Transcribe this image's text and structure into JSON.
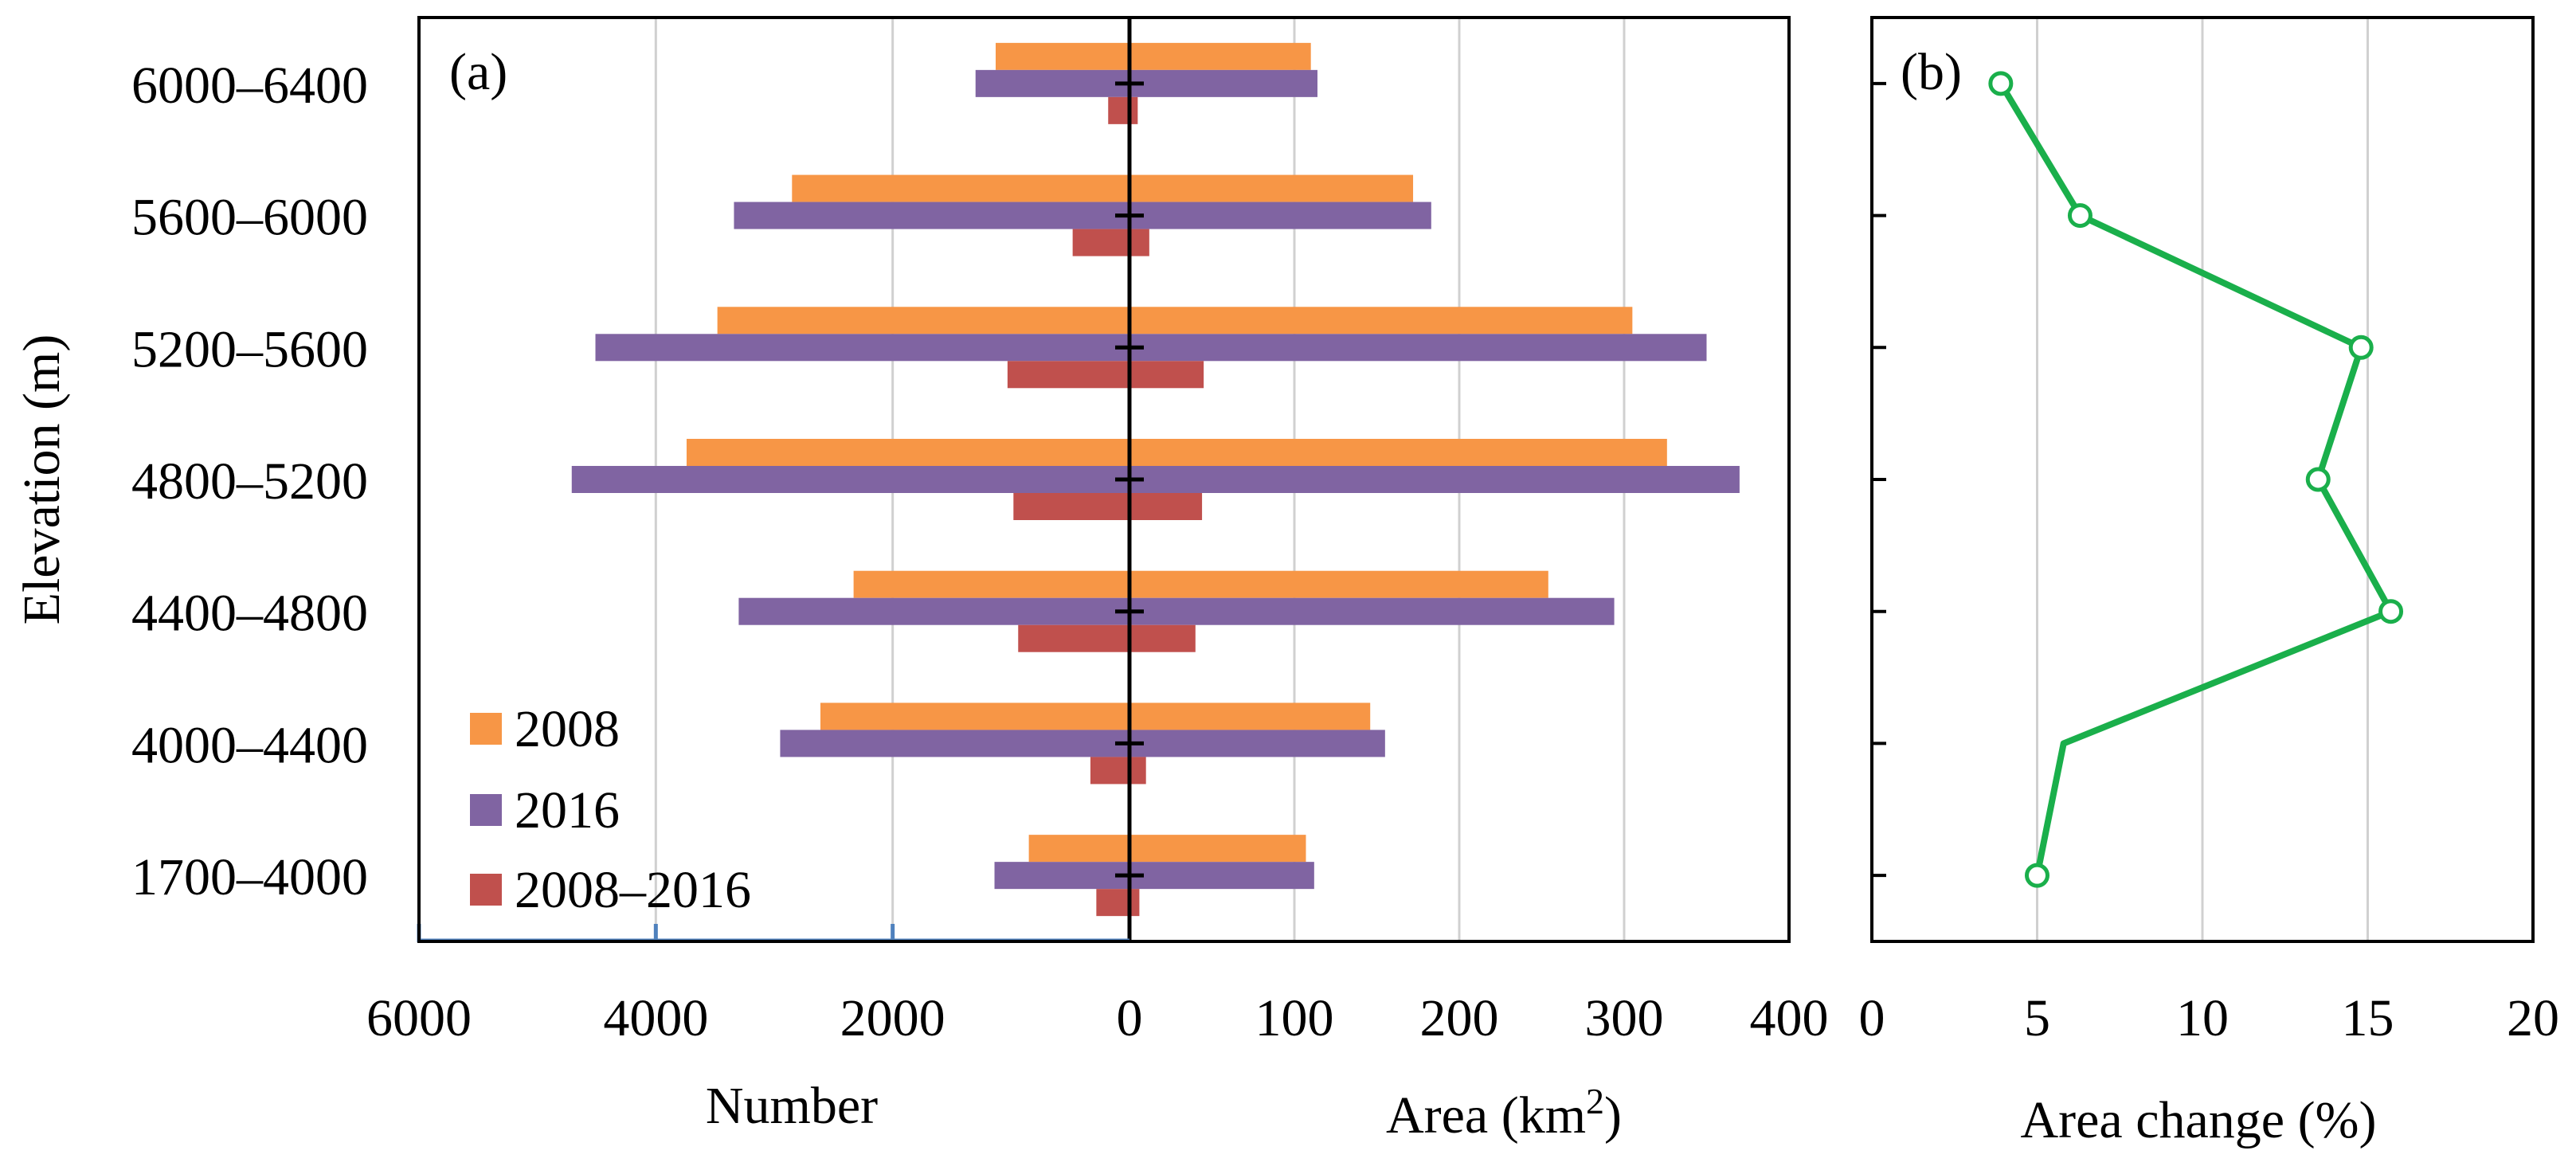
{
  "chart_data": [
    {
      "panel": "(a)",
      "type": "bar",
      "orientation": "horizontal-diverging",
      "ylabel": "Elevation (m)",
      "categories": [
        "6000–6400",
        "5600–6000",
        "5200–5600",
        "4800–5200",
        "4400–4800",
        "4000–4400",
        "1700–4000"
      ],
      "left": {
        "xlabel": "Number",
        "xlim": [
          6000,
          0
        ],
        "ticks": [
          "6000",
          "4000",
          "2000",
          "0"
        ],
        "series": [
          {
            "name": "2008",
            "color": "#F79646",
            "values": [
              1130,
              2850,
              3480,
              3740,
              2330,
              2610,
              850
            ]
          },
          {
            "name": "2016",
            "color": "#8064A2",
            "values": [
              1300,
              3340,
              4510,
              4710,
              3300,
              2950,
              1140
            ]
          },
          {
            "name": "2008–2016",
            "color": "#C0504D",
            "values": [
              180,
              480,
              1030,
              980,
              940,
              330,
              280
            ]
          }
        ]
      },
      "right": {
        "xlabel": "Area (km",
        "xlabel_sup": "2",
        "xlabel_tail": ")",
        "xlim": [
          0,
          400
        ],
        "ticks": [
          "0",
          "100",
          "200",
          "300",
          "400"
        ],
        "series": [
          {
            "name": "2008",
            "color": "#F79646",
            "values": [
              110,
              172,
              305,
              326,
              254,
              146,
              107
            ]
          },
          {
            "name": "2016",
            "color": "#8064A2",
            "values": [
              114,
              183,
              350,
              370,
              294,
              155,
              112
            ]
          },
          {
            "name": "2008–2016",
            "color": "#C0504D",
            "values": [
              5,
              12,
              45,
              44,
              40,
              10,
              6
            ]
          }
        ]
      },
      "legend": [
        "2008",
        "2016",
        "2008–2016"
      ],
      "legend_position": "bottom-left"
    },
    {
      "panel": "(b)",
      "type": "line",
      "xlabel": "Area change (%)",
      "xlim": [
        0,
        20
      ],
      "ticks": [
        "0",
        "5",
        "10",
        "15",
        "20"
      ],
      "color": "#1AAF4B",
      "categories": [
        "6000–6400",
        "5600–6000",
        "5200–5600",
        "4800–5200",
        "4400–4800",
        "4000–4400",
        "1700–4000"
      ],
      "values": [
        3.9,
        6.3,
        14.8,
        13.5,
        15.7,
        5.8,
        5.0
      ],
      "markers": [
        true,
        true,
        true,
        true,
        true,
        false,
        true
      ]
    }
  ]
}
